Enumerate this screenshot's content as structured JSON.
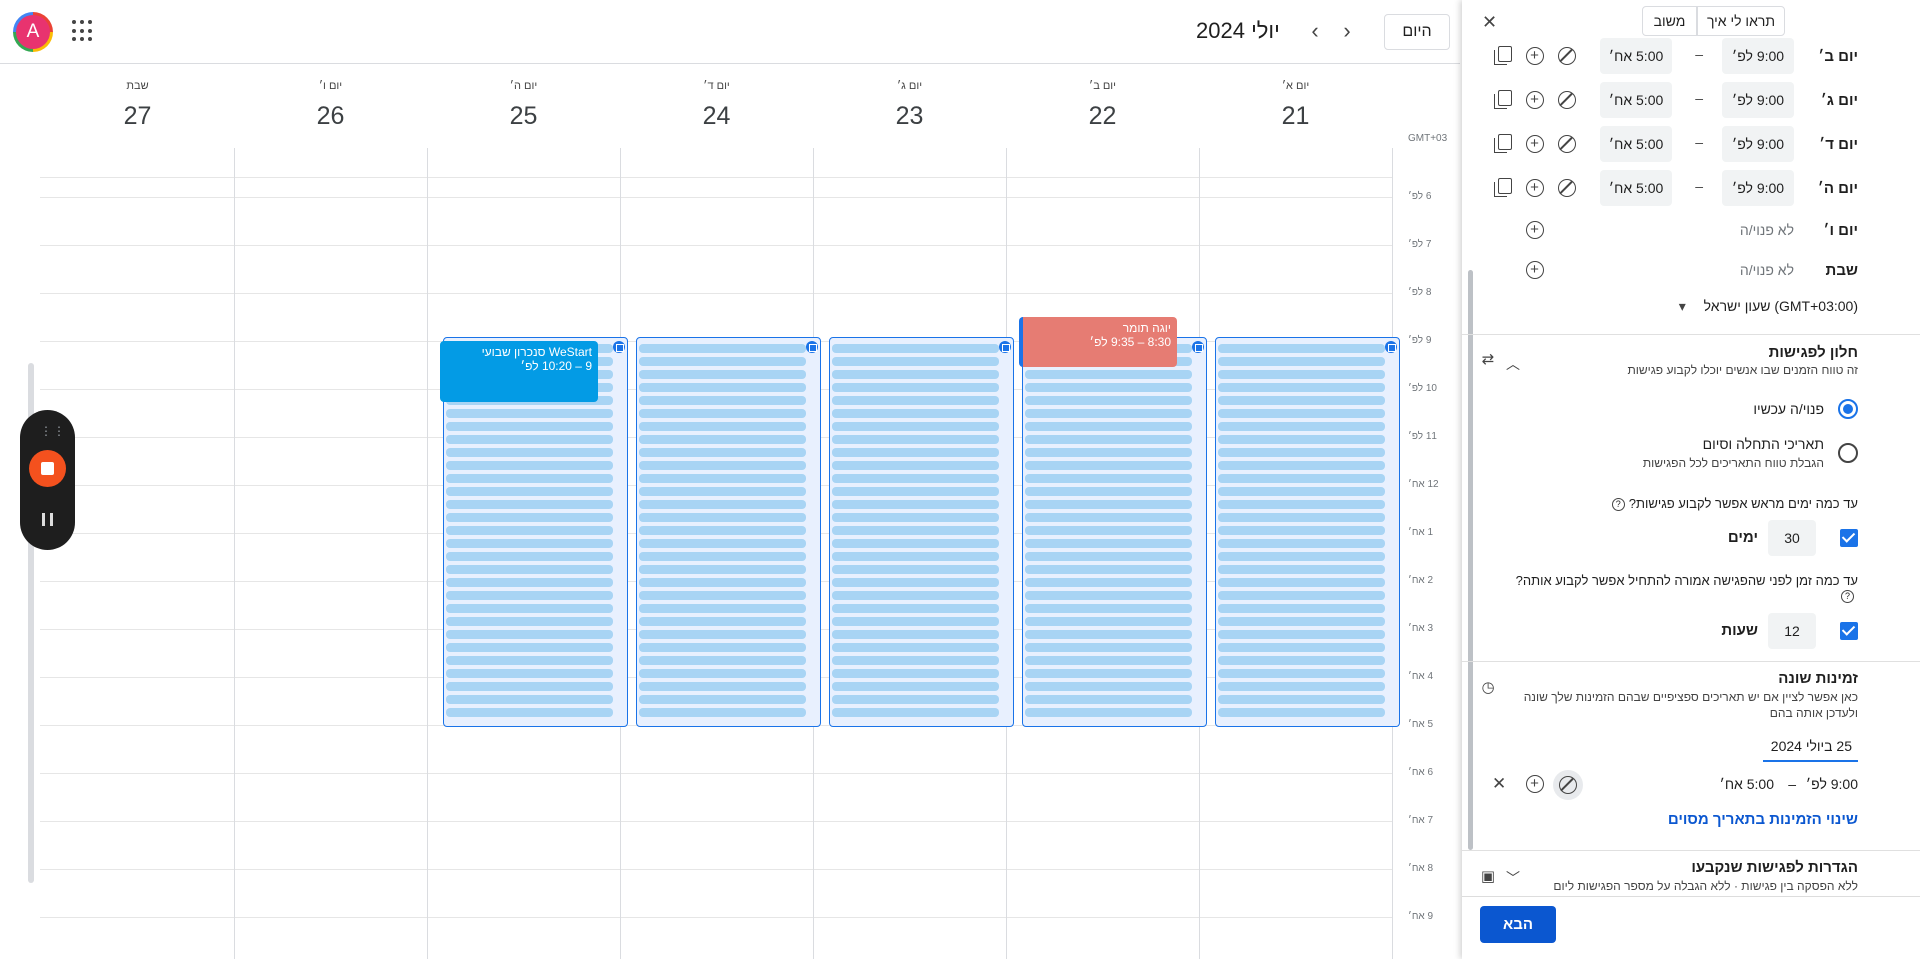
{
  "header": {
    "avatar_letter": "A",
    "today_label": "היום",
    "month_title": "יולי 2024",
    "prev_icon": "chevron-right-icon",
    "next_icon": "chevron-left-icon"
  },
  "days": [
    {
      "name": "יום א׳",
      "date": "21"
    },
    {
      "name": "יום ב׳",
      "date": "22"
    },
    {
      "name": "יום ג׳",
      "date": "23"
    },
    {
      "name": "יום ד׳",
      "date": "24"
    },
    {
      "name": "יום ה׳",
      "date": "25"
    },
    {
      "name": "יום ו׳",
      "date": "26"
    },
    {
      "name": "שבת",
      "date": "27"
    }
  ],
  "timezone_label": "GMT+03",
  "hours": [
    "6 לפ׳",
    "7 לפ׳",
    "8 לפ׳",
    "9 לפ׳",
    "10 לפ׳",
    "11 לפ׳",
    "12 אח׳",
    "1 אח׳",
    "2 אח׳",
    "3 אח׳",
    "4 אח׳",
    "5 אח׳",
    "6 אח׳",
    "7 אח׳",
    "8 אח׳",
    "9 אח׳"
  ],
  "events": {
    "blue": {
      "title": "WeStart סנכרון שבועי",
      "time": "9 – 10:20 לפ׳"
    },
    "red": {
      "title": "יוגה תומר",
      "time": "8:30 – 9:35 לפ׳"
    }
  },
  "panel": {
    "tabs": {
      "feedback": "משוב",
      "show_me": "תראו לי איך"
    },
    "weekly": [
      {
        "day": "יום ב׳",
        "start": "9:00 לפ׳",
        "end": "5:00 אח׳"
      },
      {
        "day": "יום ג׳",
        "start": "9:00 לפ׳",
        "end": "5:00 אח׳"
      },
      {
        "day": "יום ד׳",
        "start": "9:00 לפ׳",
        "end": "5:00 אח׳"
      },
      {
        "day": "יום ה׳",
        "start": "9:00 לפ׳",
        "end": "5:00 אח׳"
      }
    ],
    "unavailable": [
      {
        "day": "יום ו׳",
        "label": "לא פנוי/ה"
      },
      {
        "day": "שבת",
        "label": "לא פנוי/ה"
      }
    ],
    "time_separator": "–",
    "timezone": "(GMT+03:00) שעון ישראל",
    "window": {
      "title": "חלון לפגישות",
      "subtitle": "זה טווח הזמנים שבו אנשים יוכלו לקבוע פגישות",
      "option_now": "פנוי/ה עכשיו",
      "option_dates": "תאריכי התחלה וסיום",
      "option_dates_sub": "הגבלת טווח התאריכים לכל הפגישות",
      "q_days": "עד כמה ימים מראש אפשר לקבוע פגישות?",
      "days_value": "30",
      "days_unit": "ימים",
      "q_hours": "עד כמה זמן לפני שהפגישה אמורה להתחיל אפשר לקבוע אותה?",
      "hours_value": "12",
      "hours_unit": "שעות"
    },
    "override": {
      "title": "זמינות שונה",
      "subtitle": "כאן אפשר לציין אם יש תאריכים ספציפיים שבהם הזמינות שלך שונה ולעדכן אותה בהם",
      "date": "25 ביולי 2024",
      "start": "9:00 לפ׳",
      "end": "5:00 אח׳",
      "link": "שינוי הזמינות בתאריך מסוים"
    },
    "booked": {
      "title": "הגדרות לפגישות שנקבעו",
      "subtitle": "ללא הפסקה בין פגישות · ללא הגבלה על מספר הפגישות ליום"
    },
    "next_label": "הבא"
  }
}
